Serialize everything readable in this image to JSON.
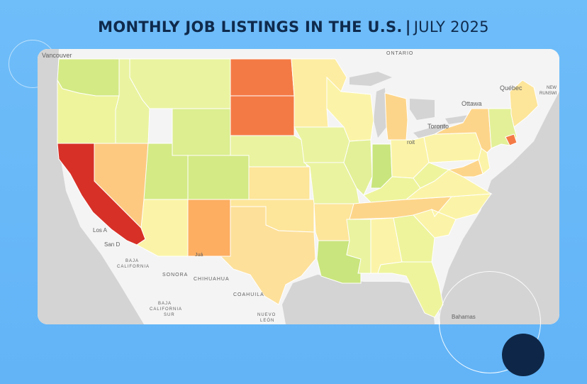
{
  "title": {
    "main": "MONTHLY JOB LISTINGS IN THE U.S.",
    "separator": "|",
    "date": "JULY 2025"
  },
  "map": {
    "states": [
      {
        "name": "Washington",
        "color": "#d4ea85"
      },
      {
        "name": "Oregon",
        "color": "#eef49c"
      },
      {
        "name": "California",
        "color": "#d73027"
      },
      {
        "name": "Nevada",
        "color": "#fdc981"
      },
      {
        "name": "Idaho",
        "color": "#eaf3a0"
      },
      {
        "name": "Montana",
        "color": "#eaf3a0"
      },
      {
        "name": "Wyoming",
        "color": "#dcee90"
      },
      {
        "name": "Utah",
        "color": "#d4ea85"
      },
      {
        "name": "Colorado",
        "color": "#d4ea85"
      },
      {
        "name": "Arizona",
        "color": "#fbf4a8"
      },
      {
        "name": "New Mexico",
        "color": "#fdae61"
      },
      {
        "name": "North Dakota",
        "color": "#f47a45"
      },
      {
        "name": "South Dakota",
        "color": "#f47a45"
      },
      {
        "name": "Nebraska",
        "color": "#eaf3a0"
      },
      {
        "name": "Kansas",
        "color": "#fde59a"
      },
      {
        "name": "Oklahoma",
        "color": "#fde59a"
      },
      {
        "name": "Texas",
        "color": "#fde09a"
      },
      {
        "name": "Minnesota",
        "color": "#fdeda2"
      },
      {
        "name": "Iowa",
        "color": "#eaf3a0"
      },
      {
        "name": "Missouri",
        "color": "#eaf3a0"
      },
      {
        "name": "Arkansas",
        "color": "#fde59a"
      },
      {
        "name": "Louisiana",
        "color": "#c9e57d"
      },
      {
        "name": "Wisconsin",
        "color": "#fbf4a8"
      },
      {
        "name": "Illinois",
        "color": "#e3f098"
      },
      {
        "name": "Michigan",
        "color": "#fdd58a"
      },
      {
        "name": "Indiana",
        "color": "#c9e57d"
      },
      {
        "name": "Ohio",
        "color": "#fbf4a8"
      },
      {
        "name": "Kentucky",
        "color": "#eef49c"
      },
      {
        "name": "Tennessee",
        "color": "#fdd58a"
      },
      {
        "name": "Mississippi",
        "color": "#eaf3a0"
      },
      {
        "name": "Alabama",
        "color": "#fbf4a8"
      },
      {
        "name": "Georgia",
        "color": "#eef49c"
      },
      {
        "name": "Florida",
        "color": "#eef49c"
      },
      {
        "name": "South Carolina",
        "color": "#fbf4a8"
      },
      {
        "name": "North Carolina",
        "color": "#fbf4a8"
      },
      {
        "name": "Virginia",
        "color": "#fbf4a8"
      },
      {
        "name": "West Virginia",
        "color": "#eef49c"
      },
      {
        "name": "Pennsylvania",
        "color": "#fbf4a8"
      },
      {
        "name": "New York",
        "color": "#fdd58a"
      },
      {
        "name": "Maine",
        "color": "#fde59a"
      },
      {
        "name": "New England",
        "color": "#e3f098"
      },
      {
        "name": "Rhode Island",
        "color": "#f47a45"
      },
      {
        "name": "New Jersey",
        "color": "#fbf4a8"
      },
      {
        "name": "Maryland",
        "color": "#fdd58a"
      }
    ],
    "labels": {
      "vancouver": "Vancouver",
      "ontario": "ONTARIO",
      "quebec": "Québec",
      "brunswick_1": "NEW",
      "brunswick_2": "RUNSWI",
      "ottawa": "Ottawa",
      "toronto": "Toronto",
      "detroit": "roit",
      "los_angeles": "Los A",
      "san_diego": "San D",
      "baja_1": "BAJA",
      "baja_2": "CALIFORNIA",
      "sonora": "SONORA",
      "chihuahua": "CHIHUAHUA",
      "juarez": "Juá",
      "coahuila": "COAHUILA",
      "bcs_1": "BAJA",
      "bcs_2": "CALIFORNIA",
      "bcs_3": "SUR",
      "nuevo_leon_1": "NUEVO",
      "nuevo_leon_2": "LEÓN",
      "bahamas": "Bahamas"
    },
    "colors": {
      "land": "#f4f4f4",
      "water": "#d4d4d4",
      "border": "#ffffff"
    }
  }
}
